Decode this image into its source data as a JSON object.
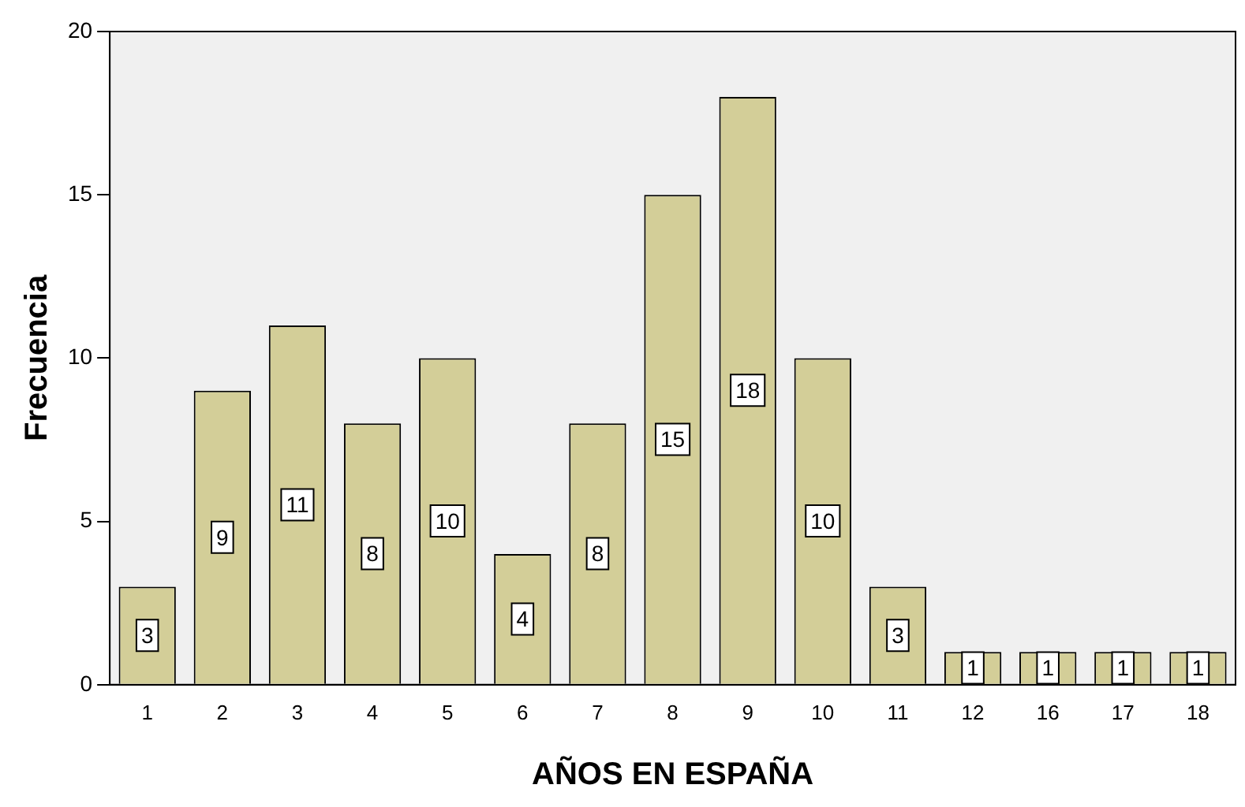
{
  "chart_data": {
    "type": "bar",
    "xlabel": "AÑOS EN ESPAÑA",
    "ylabel": "Frecuencia",
    "categories": [
      "1",
      "2",
      "3",
      "4",
      "5",
      "6",
      "7",
      "8",
      "9",
      "10",
      "11",
      "12",
      "16",
      "17",
      "18"
    ],
    "values": [
      3,
      9,
      11,
      8,
      10,
      4,
      8,
      15,
      18,
      10,
      3,
      1,
      1,
      1,
      1
    ],
    "color": "#d3ce98",
    "ylim": [
      0,
      20
    ],
    "yticks": [
      0,
      5,
      10,
      15,
      20
    ],
    "grid": false,
    "legend": false,
    "data_labels": true
  }
}
